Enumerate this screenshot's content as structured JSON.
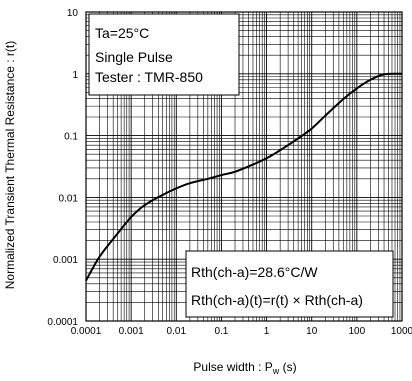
{
  "chart_data": {
    "type": "line",
    "xscale": "log",
    "yscale": "log",
    "xlim": [
      0.0001,
      1000
    ],
    "ylim": [
      0.0001,
      10
    ],
    "grid": true,
    "xlabel": {
      "text": "Pulse width : P",
      "sub": "w",
      "unit": " (s)"
    },
    "ylabel": "Normalized  Transient  Thermal  Resistance  :  r(t)",
    "x_ticks": [
      {
        "value": 0.0001,
        "label": "0.0001"
      },
      {
        "value": 0.001,
        "label": "0.001"
      },
      {
        "value": 0.01,
        "label": "0.01"
      },
      {
        "value": 0.1,
        "label": "0.1"
      },
      {
        "value": 1,
        "label": "1"
      },
      {
        "value": 10,
        "label": "10"
      },
      {
        "value": 100,
        "label": "100"
      },
      {
        "value": 1000,
        "label": "1000"
      }
    ],
    "y_ticks": [
      {
        "value": 0.0001,
        "label": "0.0001"
      },
      {
        "value": 0.001,
        "label": "0.001"
      },
      {
        "value": 0.01,
        "label": "0.01"
      },
      {
        "value": 0.1,
        "label": "0.1"
      },
      {
        "value": 1,
        "label": "1"
      },
      {
        "value": 10,
        "label": "10"
      }
    ],
    "series": [
      {
        "x": [
          0.0001,
          0.0002,
          0.0005,
          0.001,
          0.002,
          0.005,
          0.01,
          0.02,
          0.05,
          0.1,
          0.2,
          0.5,
          1,
          2,
          5,
          10,
          20,
          50,
          100,
          200,
          400,
          1000
        ],
        "y": [
          0.00045,
          0.0011,
          0.0026,
          0.0048,
          0.0075,
          0.011,
          0.014,
          0.017,
          0.02,
          0.023,
          0.026,
          0.034,
          0.043,
          0.058,
          0.09,
          0.13,
          0.21,
          0.39,
          0.58,
          0.8,
          0.98,
          1.0
        ]
      }
    ],
    "annotations": {
      "conditions": [
        "Ta=25°C",
        "Single Pulse",
        "Tester : TMR-850"
      ],
      "formula": [
        "Rth(ch-a)=28.6°C/W",
        "Rth(ch-a)(t)=r(t) × Rth(ch-a)"
      ]
    }
  }
}
